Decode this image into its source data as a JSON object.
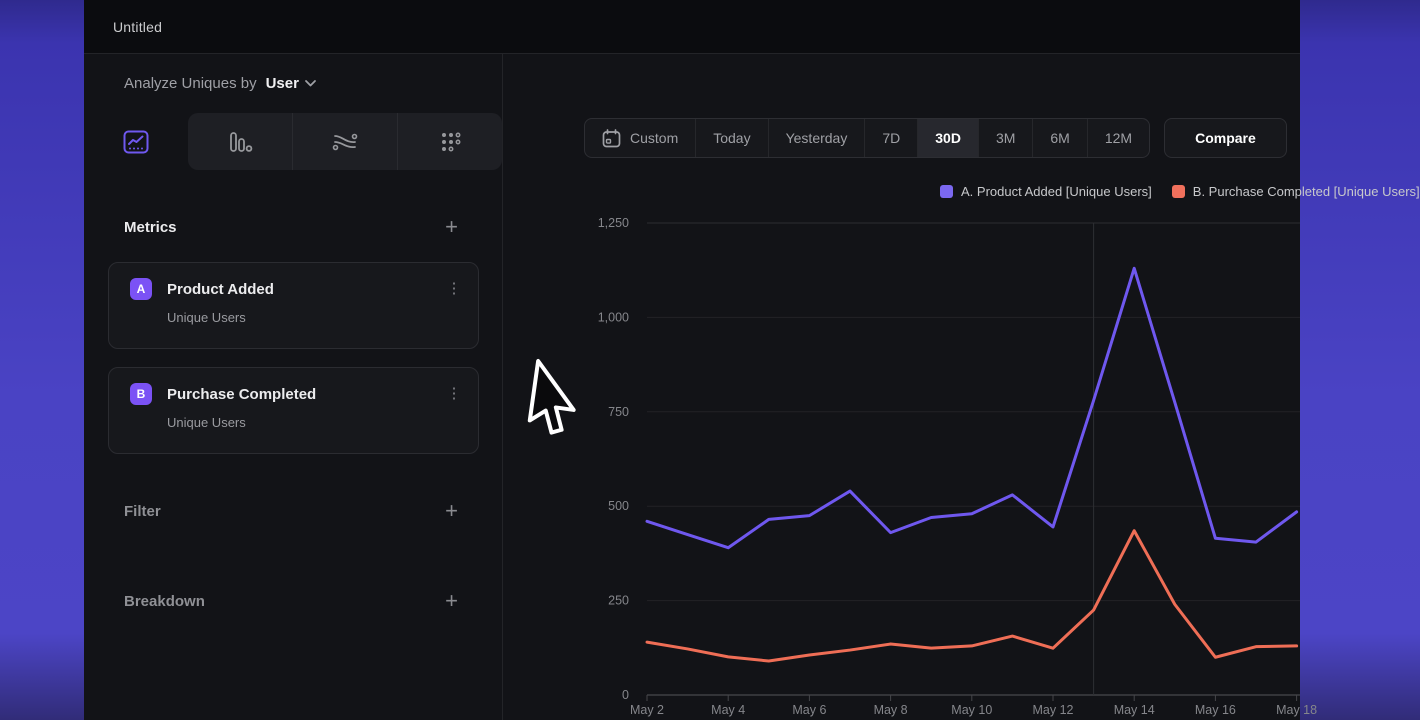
{
  "window": {
    "title": "Untitled"
  },
  "builder": {
    "analyze": {
      "prefix": "Analyze Uniques by",
      "value": "User"
    },
    "chart_type_tabs": [
      {
        "name": "line-chart",
        "active": true
      },
      {
        "name": "bar-chart",
        "active": false
      },
      {
        "name": "flow-chart",
        "active": false
      },
      {
        "name": "grid-chart",
        "active": false
      }
    ],
    "metrics": {
      "title": "Metrics",
      "add_glyph": "+",
      "items": [
        {
          "badge": "A",
          "name": "Product Added",
          "subtitle": "Unique Users",
          "menu_glyph": "⋮"
        },
        {
          "badge": "B",
          "name": "Purchase Completed",
          "subtitle": "Unique Users",
          "menu_glyph": "⋮"
        }
      ]
    },
    "filter": {
      "title": "Filter",
      "add_glyph": "+"
    },
    "breakdown": {
      "title": "Breakdown",
      "add_glyph": "+"
    }
  },
  "toolbar": {
    "ranges": [
      "Custom",
      "Today",
      "Yesterday",
      "7D",
      "30D",
      "3M",
      "6M",
      "12M"
    ],
    "active_range": "30D",
    "compare_label": "Compare"
  },
  "colors": {
    "accent_purple": "#6F58EF",
    "accent_salmon": "#EF6E56",
    "badge_purple": "#7B52F5",
    "legend_purple": "#7B68F0",
    "legend_salmon": "#F0705C"
  },
  "chart_data": {
    "type": "line",
    "x": [
      "May 2",
      "May 3",
      "May 4",
      "May 5",
      "May 6",
      "May 7",
      "May 8",
      "May 9",
      "May 10",
      "May 11",
      "May 12",
      "May 13",
      "May 14",
      "May 15",
      "May 16",
      "May 17",
      "May 18"
    ],
    "series": [
      {
        "name": "A. Product Added [Unique Users]",
        "color": "#6F58EF",
        "values": [
          460,
          425,
          390,
          465,
          475,
          540,
          430,
          470,
          480,
          530,
          445,
          780,
          1130,
          775,
          415,
          405,
          485
        ]
      },
      {
        "name": "B. Purchase Completed [Unique Users]",
        "color": "#EF6E56",
        "values": [
          140,
          122,
          101,
          90,
          106,
          119,
          135,
          124,
          130,
          156,
          124,
          225,
          435,
          240,
          100,
          128,
          130
        ]
      }
    ],
    "ylim": [
      0,
      1250
    ],
    "yticks": [
      0,
      250,
      500,
      750,
      1000,
      1250
    ],
    "ytick_labels": [
      "0",
      "250",
      "500",
      "750",
      "1,000",
      "1,250"
    ],
    "xtick_every": 2,
    "grid": "horizontal",
    "vline_at": "May 13",
    "legend_position": "top-right",
    "legend": [
      {
        "label": "A. Product Added [Unique Users]",
        "color": "#7B68F0"
      },
      {
        "label": "B. Purchase Completed [Unique Users]",
        "color": "#F0705C"
      }
    ]
  }
}
